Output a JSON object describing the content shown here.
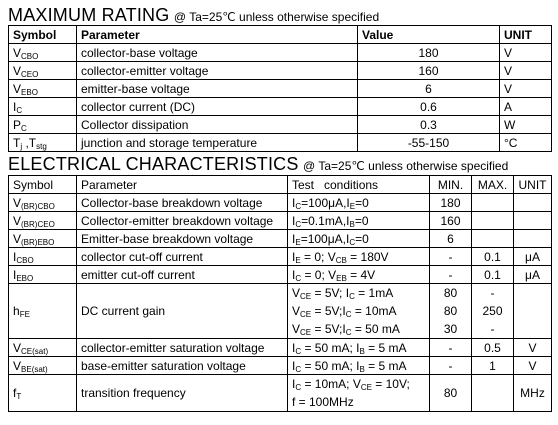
{
  "max_rating": {
    "title": "MAXIMUM RATING",
    "condition": "@ Ta=25℃ unless otherwise specified",
    "headers": {
      "symbol": "Symbol",
      "parameter": "Parameter",
      "value": "Value",
      "unit": "UNIT"
    },
    "rows": [
      {
        "sym": "V",
        "sub": "CBO",
        "param": "collector-base voltage",
        "value": "180",
        "unit": "V"
      },
      {
        "sym": "V",
        "sub": "CEO",
        "param": "collector-emitter voltage",
        "value": "160",
        "unit": "V"
      },
      {
        "sym": "V",
        "sub": "EBO",
        "param": "emitter-base voltage",
        "value": "6",
        "unit": "V"
      },
      {
        "sym": "I",
        "sub": "C",
        "param": "collector current (DC)",
        "value": "0.6",
        "unit": "A"
      },
      {
        "sym": "P",
        "sub": "C",
        "param": "Collector dissipation",
        "value": "0.3",
        "unit": "W"
      },
      {
        "sym": "T",
        "sub": "j",
        "sym2": " ,T",
        "sub2": "stg",
        "param": "junction and storage temperature",
        "value": "-55-150",
        "unit": "°C"
      }
    ]
  },
  "electrical": {
    "title": "ELECTRICAL CHARACTERISTICS",
    "condition": "@ Ta=25℃ unless otherwise specified",
    "headers": {
      "symbol": "Symbol",
      "parameter": "Parameter",
      "test": "Test   conditions",
      "min": "MIN.",
      "max": "MAX.",
      "unit": "UNIT"
    },
    "rows": [
      {
        "sym": "V",
        "sub": "(BR)CBO",
        "param": "Collector-base breakdown voltage",
        "cond": [
          {
            "a": "I",
            "as": "C",
            "b": "=100μA,I",
            "bs": "E",
            "c": "=0"
          }
        ],
        "min": "180",
        "max": "",
        "unit": ""
      },
      {
        "sym": "V",
        "sub": "(BR)CEO",
        "param": "Collector-emitter breakdown voltage",
        "cond": [
          {
            "a": "I",
            "as": "C",
            "b": "=0.1mA,I",
            "bs": "B",
            "c": "=0"
          }
        ],
        "min": "160",
        "max": "",
        "unit": ""
      },
      {
        "sym": "V",
        "sub": "(BR)EBO",
        "param": "Emitter-base breakdown voltage",
        "cond": [
          {
            "a": "I",
            "as": "E",
            "b": "=100μA,I",
            "bs": "C",
            "c": "=0"
          }
        ],
        "min": "6",
        "max": "",
        "unit": ""
      },
      {
        "sym": "I",
        "sub": "CBO",
        "param": "collector cut-off current",
        "cond": [
          {
            "a": "I",
            "as": "E",
            "b": " = 0; V",
            "bs": "CB",
            "c": " = 180V"
          }
        ],
        "min": "-",
        "max": "0.1",
        "unit": "μA"
      },
      {
        "sym": "I",
        "sub": "EBO",
        "param": "emitter cut-off current",
        "cond": [
          {
            "a": "I",
            "as": "C",
            "b": " = 0; V",
            "bs": "EB",
            "c": " = 4V"
          }
        ],
        "min": "-",
        "max": "0.1",
        "unit": "μA"
      },
      {
        "sym": "h",
        "sub": "FE",
        "param": "DC current gain",
        "cond": [
          {
            "a": "V",
            "as": "CE",
            "b": " = 5V; I",
            "bs": "C",
            "c": " = 1mA"
          },
          {
            "a": "V",
            "as": "CE",
            "b": " = 5V;I",
            "bs": "C",
            "c": " = 10mA"
          },
          {
            "a": "V",
            "as": "CE",
            "b": " = 5V;I",
            "bs": "C",
            "c": " = 50 mA"
          }
        ],
        "min_lines": [
          "80",
          "80",
          "30"
        ],
        "max_lines": [
          "-",
          "250",
          "-"
        ],
        "unit": ""
      },
      {
        "sym": "V",
        "sub": "CE(sat)",
        "param": "collector-emitter saturation voltage",
        "cond": [
          {
            "a": "I",
            "as": "C",
            "b": " = 50 mA; I",
            "bs": "B",
            "c": " = 5 mA"
          }
        ],
        "min": "-",
        "max": "0.5",
        "unit": "V"
      },
      {
        "sym": "V",
        "sub": "BE(sat)",
        "param": "base-emitter saturation voltage",
        "cond": [
          {
            "a": "I",
            "as": "C",
            "b": " = 50 mA; I",
            "bs": "B",
            "c": " = 5 mA"
          }
        ],
        "min": "-",
        "max": "1",
        "unit": "V"
      },
      {
        "sym": "f",
        "sub": "T",
        "param": "transition frequency",
        "cond_text": [
          "I",
          "C",
          " = 10mA; V",
          "CE",
          " = 10V;",
          "f = 100MHz"
        ],
        "min": "80",
        "max": "",
        "unit": "MHz"
      }
    ]
  }
}
